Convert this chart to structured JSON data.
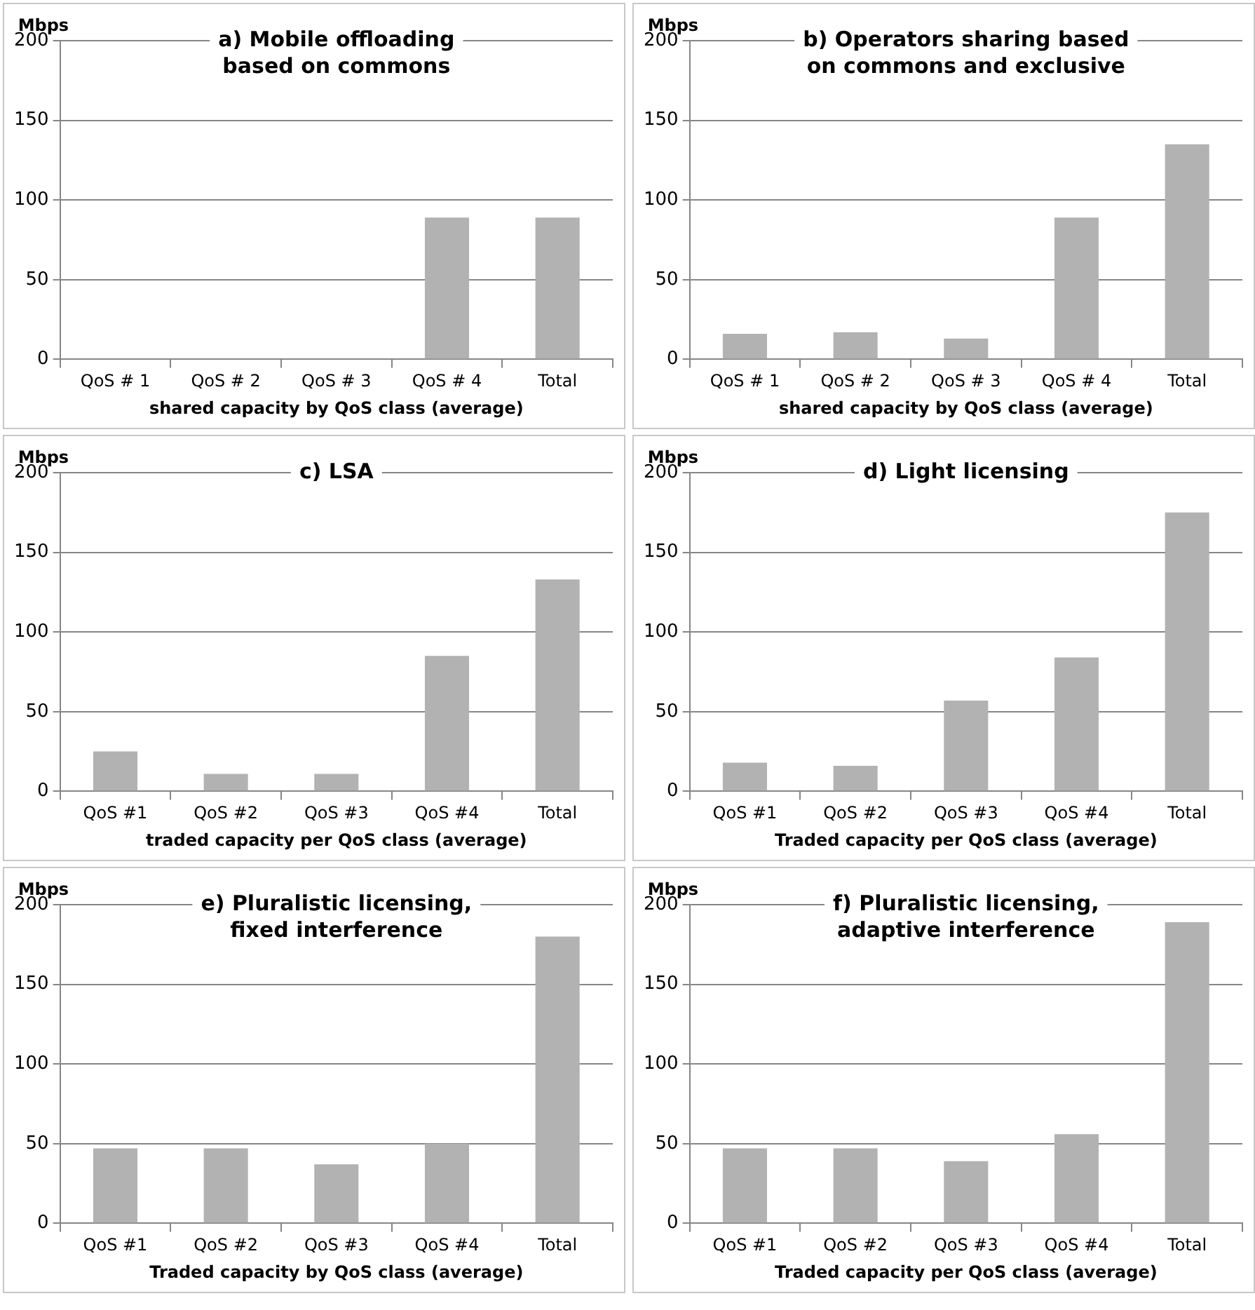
{
  "chart_data": [
    {
      "type": "bar",
      "title": "a) Mobile offloading based on commons",
      "ylabel": "Mbps",
      "xlabel": "shared capacity by QoS class (average)",
      "categories": [
        "QoS # 1",
        "QoS # 2",
        "QoS # 3",
        "QoS # 4",
        "Total"
      ],
      "values": [
        0,
        0,
        0,
        89,
        89
      ],
      "color": "#b2b2b2",
      "ylim": [
        0,
        200
      ],
      "yticks": [
        0,
        50,
        100,
        150,
        200
      ],
      "grid": "y"
    },
    {
      "type": "bar",
      "title": "b) Operators sharing based on commons and exclusive",
      "ylabel": "Mbps",
      "xlabel": "shared capacity by QoS class (average)",
      "categories": [
        "QoS # 1",
        "QoS # 2",
        "QoS # 3",
        "QoS # 4",
        "Total"
      ],
      "values": [
        16,
        17,
        13,
        89,
        135
      ],
      "color": "#b2b2b2",
      "ylim": [
        0,
        200
      ],
      "yticks": [
        0,
        50,
        100,
        150,
        200
      ],
      "grid": "y"
    },
    {
      "type": "bar",
      "title": "c) LSA",
      "ylabel": "Mbps",
      "xlabel": "traded capacity per QoS class (average)",
      "categories": [
        "QoS #1",
        "QoS #2",
        "QoS #3",
        "QoS #4",
        "Total"
      ],
      "values": [
        25,
        11,
        11,
        85,
        133
      ],
      "color": "#b2b2b2",
      "ylim": [
        0,
        200
      ],
      "yticks": [
        0,
        50,
        100,
        150,
        200
      ],
      "grid": "y"
    },
    {
      "type": "bar",
      "title": "d) Light licensing",
      "ylabel": "Mbps",
      "xlabel": "Traded capacity per QoS class (average)",
      "categories": [
        "QoS #1",
        "QoS #2",
        "QoS #3",
        "QoS #4",
        "Total"
      ],
      "values": [
        18,
        16,
        57,
        84,
        175
      ],
      "color": "#b2b2b2",
      "ylim": [
        0,
        200
      ],
      "yticks": [
        0,
        50,
        100,
        150,
        200
      ],
      "grid": "y"
    },
    {
      "type": "bar",
      "title": "e) Pluralistic licensing, fixed interference",
      "ylabel": "Mbps",
      "xlabel": "Traded capacity by QoS class (average)",
      "categories": [
        "QoS #1",
        "QoS #2",
        "QoS #3",
        "QoS #4",
        "Total"
      ],
      "values": [
        47,
        47,
        37,
        50,
        180
      ],
      "color": "#b2b2b2",
      "ylim": [
        0,
        200
      ],
      "yticks": [
        0,
        50,
        100,
        150,
        200
      ],
      "grid": "y"
    },
    {
      "type": "bar",
      "title": "f) Pluralistic licensing, adaptive interference",
      "ylabel": "Mbps",
      "xlabel": "Traded capacity per QoS class (average)",
      "categories": [
        "QoS #1",
        "QoS #2",
        "QoS #3",
        "QoS #4",
        "Total"
      ],
      "values": [
        47,
        47,
        39,
        56,
        189
      ],
      "color": "#b2b2b2",
      "ylim": [
        0,
        200
      ],
      "yticks": [
        0,
        50,
        100,
        150,
        200
      ],
      "grid": "y"
    }
  ]
}
